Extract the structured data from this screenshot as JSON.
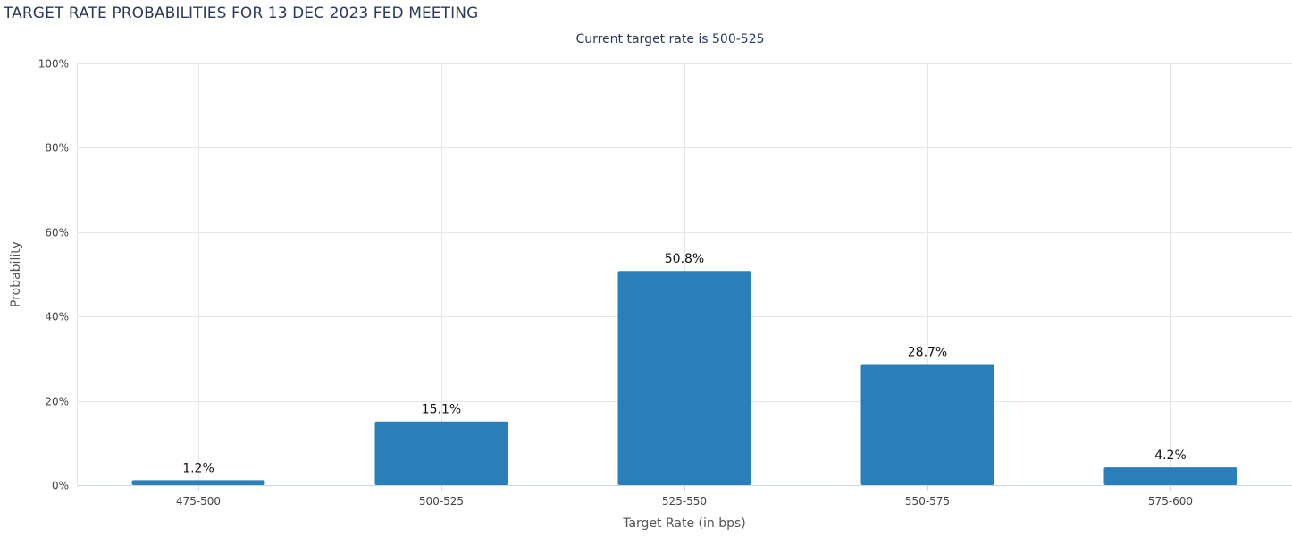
{
  "chart_data": {
    "type": "bar",
    "title": "TARGET RATE PROBABILITIES FOR 13 DEC 2023 FED MEETING",
    "subtitle": "Current target rate is 500-525",
    "xlabel": "Target Rate (in bps)",
    "ylabel": "Probability",
    "categories": [
      "475-500",
      "500-525",
      "525-550",
      "550-575",
      "575-600"
    ],
    "values": [
      1.2,
      15.1,
      50.8,
      28.7,
      4.2
    ],
    "data_labels": [
      "1.2%",
      "15.1%",
      "50.8%",
      "28.7%",
      "4.2%"
    ],
    "ylim": [
      0,
      100
    ],
    "yticks": [
      0,
      20,
      40,
      60,
      80,
      100
    ],
    "ytick_labels": [
      "0%",
      "20%",
      "40%",
      "60%",
      "80%",
      "100%"
    ],
    "grid": true,
    "legend": "none",
    "bar_color": "#2a7fb8",
    "grid_color": "#e6e6e6",
    "axis_color": "#ccd6eb"
  }
}
